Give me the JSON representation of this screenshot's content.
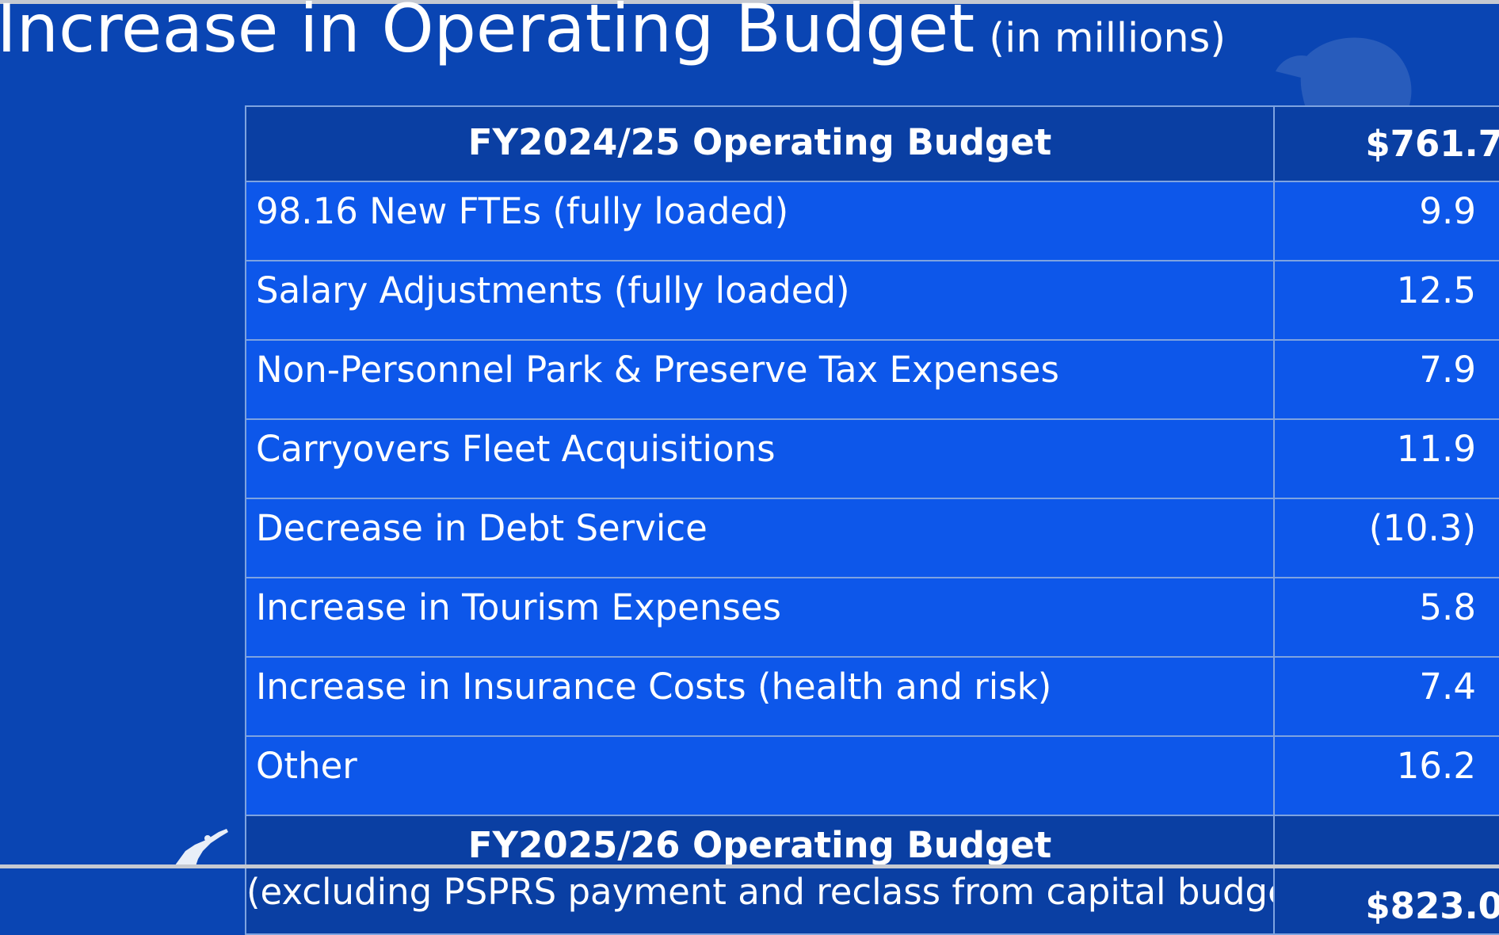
{
  "slide": {
    "title": "Increase in Operating Budget",
    "subtitle": "(in  millions)"
  },
  "table": {
    "header": {
      "label": "FY2024/25 Operating Budget",
      "value": "$761.7"
    },
    "rows": [
      {
        "label": "98.16 New FTEs  (fully loaded)",
        "value": "9.9"
      },
      {
        "label": "Salary Adjustments (fully loaded)",
        "value": "12.5"
      },
      {
        "label": "Non-Personnel Park & Preserve Tax  Expenses",
        "value": "7.9"
      },
      {
        "label": "Carryovers Fleet Acquisitions",
        "value": "11.9"
      },
      {
        "label": "Decrease in Debt Service",
        "value": "(10.3)"
      },
      {
        "label": "Increase in Tourism Expenses",
        "value": "5.8"
      },
      {
        "label": "Increase in Insurance Costs (health and risk)",
        "value": "7.4"
      },
      {
        "label": "Other",
        "value": "16.2"
      }
    ],
    "total": {
      "label": "FY2025/26 Operating Budget",
      "note": "(excluding PSPRS payment and reclass from capital budget)",
      "value": "$823.0"
    }
  },
  "colors": {
    "background": "#0a45b3",
    "header_row": "#0a3fa3",
    "item_row": "#0d57ea",
    "grid_line": "#7ea3e0",
    "text": "#ffffff"
  },
  "icons": [
    "city-seal-watermark",
    "statue-logo-icon"
  ]
}
